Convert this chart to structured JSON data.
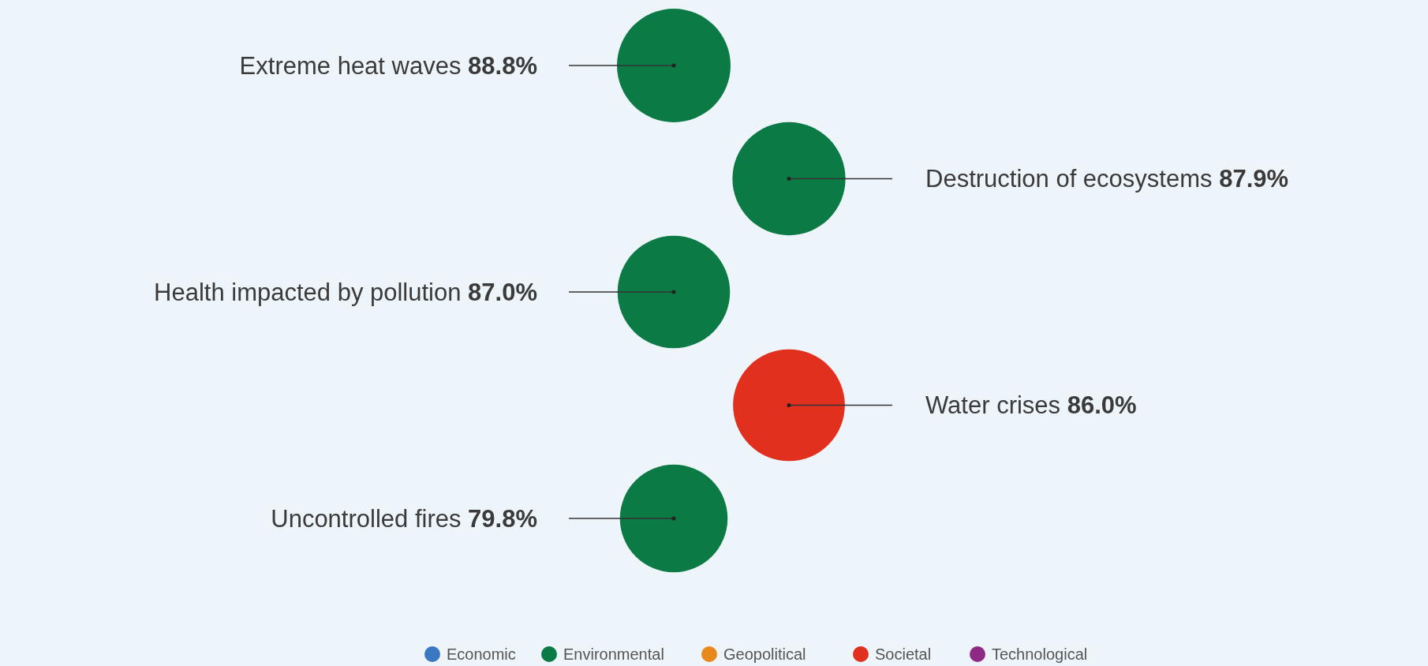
{
  "chart_data": {
    "type": "other",
    "categories": [
      "Extreme heat waves",
      "Destruction of ecosystems",
      "Health impacted by pollution",
      "Water crises",
      "Uncontrolled fires"
    ],
    "legend": "bottom",
    "series": [
      {
        "name": "Economic",
        "color": "#3b78c2",
        "values": [
          null,
          null,
          null,
          null,
          null
        ]
      },
      {
        "name": "Environmental",
        "color": "#0b7a45",
        "values": [
          88.8,
          87.9,
          87.0,
          null,
          79.8
        ],
        "value_labels": [
          "88.8%",
          "87.9%",
          "87.0%",
          null,
          "79.8%"
        ]
      },
      {
        "name": "Geopolitical",
        "color": "#e8891d",
        "values": [
          null,
          null,
          null,
          null,
          null
        ]
      },
      {
        "name": "Societal",
        "color": "#e2301f",
        "values": [
          null,
          null,
          null,
          86.0,
          null
        ],
        "value_labels": [
          null,
          null,
          null,
          "86.0%",
          null
        ]
      },
      {
        "name": "Technological",
        "color": "#8e2a86",
        "values": [
          null,
          null,
          null,
          null,
          null
        ]
      }
    ]
  }
}
